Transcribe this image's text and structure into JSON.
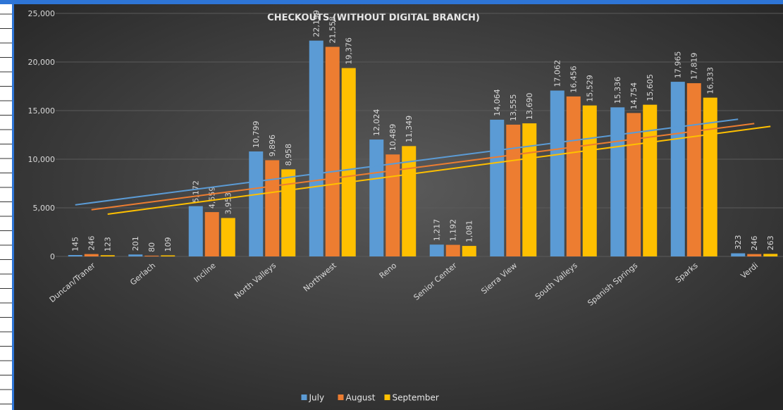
{
  "chart_data": {
    "type": "bar",
    "title": "CHECKOUTS (WITHOUT DIGITAL BRANCH)",
    "categories": [
      "Duncan/Traner",
      "Gerlach",
      "Incline",
      "North Valleys",
      "Northwest",
      "Reno",
      "Senior Center",
      "Sierra View",
      "South Valleys",
      "Spanish Springs",
      "Sparks",
      "Verdi"
    ],
    "series": [
      {
        "name": "July",
        "color": "#5b9bd5",
        "values": [
          145,
          201,
          5172,
          10799,
          22199,
          12024,
          1217,
          14064,
          17062,
          15336,
          17965,
          323
        ],
        "value_labels": [
          "145",
          "201",
          "5,172",
          "10,799",
          "22,199",
          "12,024",
          "1,217",
          "14,064",
          "17,062",
          "15,336",
          "17,965",
          "323"
        ]
      },
      {
        "name": "August",
        "color": "#ed7d31",
        "values": [
          246,
          80,
          4559,
          9896,
          21558,
          10489,
          1192,
          13555,
          16456,
          14754,
          17819,
          246
        ],
        "value_labels": [
          "246",
          "80",
          "4,559",
          "9,896",
          "21,558",
          "10,489",
          "1,192",
          "13,555",
          "16,456",
          "14,754",
          "17,819",
          "246"
        ]
      },
      {
        "name": "September",
        "color": "#ffc000",
        "values": [
          123,
          109,
          3953,
          8958,
          19376,
          11349,
          1081,
          13690,
          15529,
          15605,
          16333,
          263
        ],
        "value_labels": [
          "123",
          "109",
          "3,953",
          "8,958",
          "19,376",
          "11,349",
          "1,081",
          "13,690",
          "15,529",
          "15,605",
          "16,333",
          "263"
        ]
      }
    ],
    "ylim": [
      0,
      25000
    ],
    "yticks": [
      0,
      {
        "value": 5000,
        "label": "5,000"
      },
      {
        "value": 10000,
        "label": "10,000"
      },
      {
        "value": 15000,
        "label": "15,000"
      },
      {
        "value": 20000,
        "label": "20,000"
      },
      {
        "value": 25000,
        "label": "25,000"
      }
    ],
    "trendline": "linear",
    "legend": "bottom"
  }
}
